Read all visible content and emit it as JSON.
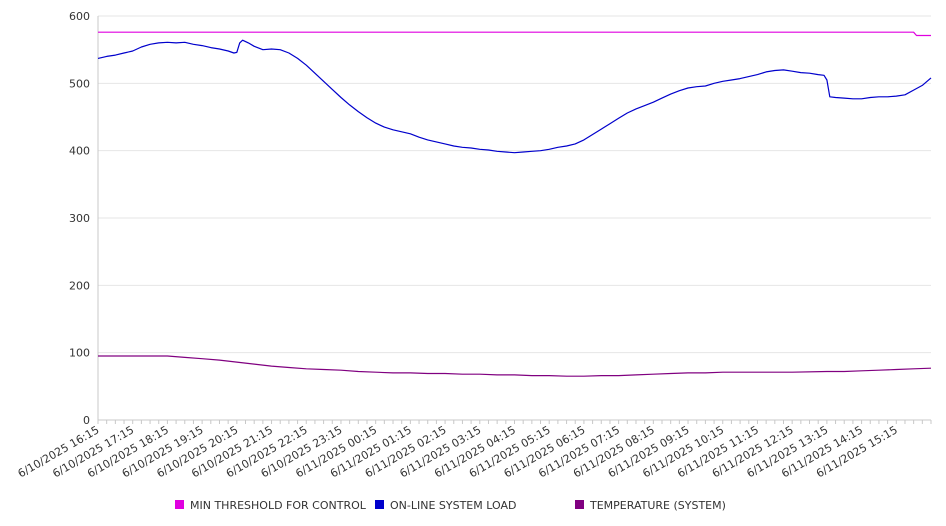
{
  "chart_data": {
    "type": "line",
    "title": "",
    "xlabel": "",
    "ylabel": "",
    "ylim": [
      0,
      600
    ],
    "y_ticks": [
      "0",
      "100",
      "200",
      "300",
      "400",
      "500",
      "600"
    ],
    "x_range": [
      "6/10/2025 16:15",
      "6/11/2025 16:15"
    ],
    "x_ticks": [
      "6/10/2025 16:15",
      "6/10/2025 17:15",
      "6/10/2025 18:15",
      "6/10/2025 19:15",
      "6/10/2025 20:15",
      "6/10/2025 21:15",
      "6/10/2025 22:15",
      "6/10/2025 23:15",
      "6/11/2025 00:15",
      "6/11/2025 01:15",
      "6/11/2025 02:15",
      "6/11/2025 03:15",
      "6/11/2025 04:15",
      "6/11/2025 05:15",
      "6/11/2025 06:15",
      "6/11/2025 07:15",
      "6/11/2025 08:15",
      "6/11/2025 09:15",
      "6/11/2025 10:15",
      "6/11/2025 11:15",
      "6/11/2025 12:15",
      "6/11/2025 13:15",
      "6/11/2025 14:15",
      "6/11/2025 15:15"
    ],
    "grid": "horizontal",
    "legend_position": "bottom",
    "series": [
      {
        "name": "MIN THRESHOLD FOR CONTROL",
        "color": "#e000e0",
        "points": [
          [
            "6/10/2025 16:15",
            576
          ],
          [
            "6/11/2025 15:45",
            576
          ],
          [
            "6/11/2025 15:50",
            571
          ],
          [
            "6/11/2025 16:15",
            571
          ]
        ]
      },
      {
        "name": "ON-LINE SYSTEM LOAD",
        "color": "#0000cc",
        "points": [
          [
            "6/10/2025 16:15",
            537
          ],
          [
            "6/10/2025 16:30",
            540
          ],
          [
            "6/10/2025 16:45",
            542
          ],
          [
            "6/10/2025 17:00",
            545
          ],
          [
            "6/10/2025 17:15",
            548
          ],
          [
            "6/10/2025 17:30",
            554
          ],
          [
            "6/10/2025 17:45",
            558
          ],
          [
            "6/10/2025 18:00",
            560
          ],
          [
            "6/10/2025 18:15",
            561
          ],
          [
            "6/10/2025 18:30",
            560
          ],
          [
            "6/10/2025 18:45",
            561
          ],
          [
            "6/10/2025 19:00",
            558
          ],
          [
            "6/10/2025 19:15",
            556
          ],
          [
            "6/10/2025 19:30",
            553
          ],
          [
            "6/10/2025 19:45",
            551
          ],
          [
            "6/10/2025 20:00",
            548
          ],
          [
            "6/10/2025 20:10",
            545
          ],
          [
            "6/10/2025 20:15",
            546
          ],
          [
            "6/10/2025 20:20",
            560
          ],
          [
            "6/10/2025 20:25",
            564
          ],
          [
            "6/10/2025 20:35",
            560
          ],
          [
            "6/10/2025 20:45",
            555
          ],
          [
            "6/10/2025 21:00",
            550
          ],
          [
            "6/10/2025 21:15",
            551
          ],
          [
            "6/10/2025 21:30",
            550
          ],
          [
            "6/10/2025 21:45",
            545
          ],
          [
            "6/10/2025 22:00",
            537
          ],
          [
            "6/10/2025 22:15",
            527
          ],
          [
            "6/10/2025 22:30",
            515
          ],
          [
            "6/10/2025 22:45",
            503
          ],
          [
            "6/10/2025 23:00",
            491
          ],
          [
            "6/10/2025 23:15",
            479
          ],
          [
            "6/10/2025 23:30",
            468
          ],
          [
            "6/10/2025 23:45",
            458
          ],
          [
            "6/11/2025 00:00",
            449
          ],
          [
            "6/11/2025 00:15",
            441
          ],
          [
            "6/11/2025 00:30",
            435
          ],
          [
            "6/11/2025 00:45",
            431
          ],
          [
            "6/11/2025 01:00",
            428
          ],
          [
            "6/11/2025 01:15",
            425
          ],
          [
            "6/11/2025 01:30",
            420
          ],
          [
            "6/11/2025 01:45",
            416
          ],
          [
            "6/11/2025 02:00",
            413
          ],
          [
            "6/11/2025 02:15",
            410
          ],
          [
            "6/11/2025 02:30",
            407
          ],
          [
            "6/11/2025 02:45",
            405
          ],
          [
            "6/11/2025 03:00",
            404
          ],
          [
            "6/11/2025 03:15",
            402
          ],
          [
            "6/11/2025 03:30",
            401
          ],
          [
            "6/11/2025 03:45",
            399
          ],
          [
            "6/11/2025 04:00",
            398
          ],
          [
            "6/11/2025 04:15",
            397
          ],
          [
            "6/11/2025 04:30",
            398
          ],
          [
            "6/11/2025 04:45",
            399
          ],
          [
            "6/11/2025 05:00",
            400
          ],
          [
            "6/11/2025 05:15",
            402
          ],
          [
            "6/11/2025 05:30",
            405
          ],
          [
            "6/11/2025 05:45",
            407
          ],
          [
            "6/11/2025 06:00",
            410
          ],
          [
            "6/11/2025 06:15",
            416
          ],
          [
            "6/11/2025 06:30",
            424
          ],
          [
            "6/11/2025 06:45",
            432
          ],
          [
            "6/11/2025 07:00",
            440
          ],
          [
            "6/11/2025 07:15",
            448
          ],
          [
            "6/11/2025 07:30",
            456
          ],
          [
            "6/11/2025 07:45",
            462
          ],
          [
            "6/11/2025 08:00",
            467
          ],
          [
            "6/11/2025 08:15",
            472
          ],
          [
            "6/11/2025 08:30",
            478
          ],
          [
            "6/11/2025 08:45",
            484
          ],
          [
            "6/11/2025 09:00",
            489
          ],
          [
            "6/11/2025 09:15",
            493
          ],
          [
            "6/11/2025 09:30",
            495
          ],
          [
            "6/11/2025 09:45",
            496
          ],
          [
            "6/11/2025 10:00",
            500
          ],
          [
            "6/11/2025 10:15",
            503
          ],
          [
            "6/11/2025 10:30",
            505
          ],
          [
            "6/11/2025 10:45",
            507
          ],
          [
            "6/11/2025 11:00",
            510
          ],
          [
            "6/11/2025 11:15",
            513
          ],
          [
            "6/11/2025 11:30",
            517
          ],
          [
            "6/11/2025 11:45",
            519
          ],
          [
            "6/11/2025 12:00",
            520
          ],
          [
            "6/11/2025 12:15",
            518
          ],
          [
            "6/11/2025 12:30",
            516
          ],
          [
            "6/11/2025 12:45",
            515
          ],
          [
            "6/11/2025 13:00",
            513
          ],
          [
            "6/11/2025 13:10",
            512
          ],
          [
            "6/11/2025 13:15",
            505
          ],
          [
            "6/11/2025 13:20",
            480
          ],
          [
            "6/11/2025 13:30",
            479
          ],
          [
            "6/11/2025 13:45",
            478
          ],
          [
            "6/11/2025 14:00",
            477
          ],
          [
            "6/11/2025 14:15",
            477
          ],
          [
            "6/11/2025 14:30",
            479
          ],
          [
            "6/11/2025 14:45",
            480
          ],
          [
            "6/11/2025 15:00",
            480
          ],
          [
            "6/11/2025 15:15",
            481
          ],
          [
            "6/11/2025 15:30",
            483
          ],
          [
            "6/11/2025 15:45",
            490
          ],
          [
            "6/11/2025 16:00",
            497
          ],
          [
            "6/11/2025 16:15",
            508
          ]
        ]
      },
      {
        "name": "TEMPERATURE (SYSTEM)",
        "color": "#800080",
        "points": [
          [
            "6/10/2025 16:15",
            95
          ],
          [
            "6/10/2025 17:15",
            95
          ],
          [
            "6/10/2025 18:15",
            95
          ],
          [
            "6/10/2025 18:45",
            93
          ],
          [
            "6/10/2025 19:15",
            91
          ],
          [
            "6/10/2025 19:45",
            89
          ],
          [
            "6/10/2025 20:15",
            86
          ],
          [
            "6/10/2025 20:45",
            83
          ],
          [
            "6/10/2025 21:15",
            80
          ],
          [
            "6/10/2025 21:45",
            78
          ],
          [
            "6/10/2025 22:15",
            76
          ],
          [
            "6/10/2025 22:45",
            75
          ],
          [
            "6/10/2025 23:15",
            74
          ],
          [
            "6/10/2025 23:45",
            72
          ],
          [
            "6/11/2025 00:15",
            71
          ],
          [
            "6/11/2025 00:45",
            70
          ],
          [
            "6/11/2025 01:15",
            70
          ],
          [
            "6/11/2025 01:45",
            69
          ],
          [
            "6/11/2025 02:15",
            69
          ],
          [
            "6/11/2025 02:45",
            68
          ],
          [
            "6/11/2025 03:15",
            68
          ],
          [
            "6/11/2025 03:45",
            67
          ],
          [
            "6/11/2025 04:15",
            67
          ],
          [
            "6/11/2025 04:45",
            66
          ],
          [
            "6/11/2025 05:15",
            66
          ],
          [
            "6/11/2025 05:45",
            65
          ],
          [
            "6/11/2025 06:15",
            65
          ],
          [
            "6/11/2025 06:45",
            66
          ],
          [
            "6/11/2025 07:15",
            66
          ],
          [
            "6/11/2025 07:45",
            67
          ],
          [
            "6/11/2025 08:15",
            68
          ],
          [
            "6/11/2025 08:45",
            69
          ],
          [
            "6/11/2025 09:15",
            70
          ],
          [
            "6/11/2025 09:45",
            70
          ],
          [
            "6/11/2025 10:15",
            71
          ],
          [
            "6/11/2025 11:15",
            71
          ],
          [
            "6/11/2025 12:15",
            71
          ],
          [
            "6/11/2025 13:15",
            72
          ],
          [
            "6/11/2025 13:45",
            72
          ],
          [
            "6/11/2025 14:15",
            73
          ],
          [
            "6/11/2025 14:45",
            74
          ],
          [
            "6/11/2025 15:15",
            75
          ],
          [
            "6/11/2025 15:45",
            76
          ],
          [
            "6/11/2025 16:15",
            77
          ]
        ]
      }
    ]
  }
}
